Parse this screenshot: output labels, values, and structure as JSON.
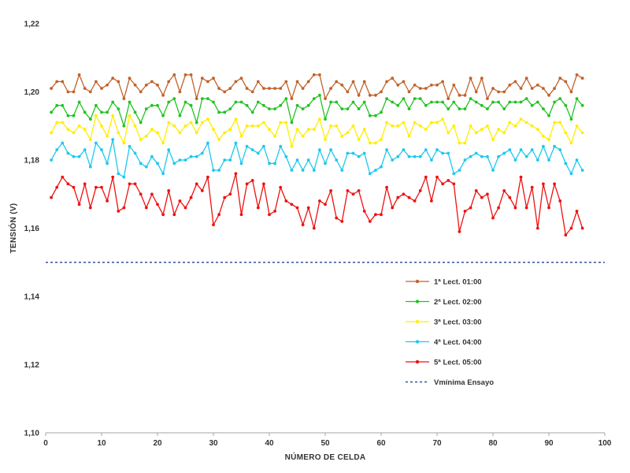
{
  "chart_data": {
    "type": "line",
    "title": "",
    "xlabel": "NÚMERO DE CELDA",
    "ylabel": "TENSIÓN (V)",
    "xlim": [
      0,
      100
    ],
    "ylim": [
      1.1,
      1.22
    ],
    "xticks": [
      0,
      10,
      20,
      30,
      40,
      50,
      60,
      70,
      80,
      90,
      100
    ],
    "xtick_labels": [
      "0",
      "10",
      "20",
      "30",
      "40",
      "50",
      "60",
      "70",
      "80",
      "90",
      "100"
    ],
    "yticks": [
      1.1,
      1.12,
      1.14,
      1.16,
      1.18,
      1.2,
      1.22
    ],
    "ytick_labels": [
      "1,10",
      "1,12",
      "1,14",
      "1,16",
      "1,18",
      "1,20",
      "1,22"
    ],
    "grid": "none",
    "legend_position": "right",
    "x": [
      1,
      2,
      3,
      4,
      5,
      6,
      7,
      8,
      9,
      10,
      11,
      12,
      13,
      14,
      15,
      16,
      17,
      18,
      19,
      20,
      21,
      22,
      23,
      24,
      25,
      26,
      27,
      28,
      29,
      30,
      31,
      32,
      33,
      34,
      35,
      36,
      37,
      38,
      39,
      40,
      41,
      42,
      43,
      44,
      45,
      46,
      47,
      48,
      49,
      50,
      51,
      52,
      53,
      54,
      55,
      56,
      57,
      58,
      59,
      60,
      61,
      62,
      63,
      64,
      65,
      66,
      67,
      68,
      69,
      70,
      71,
      72,
      73,
      74,
      75,
      76,
      77,
      78,
      79,
      80,
      81,
      82,
      83,
      84,
      85,
      86,
      87,
      88,
      89,
      90,
      91,
      92,
      93,
      94,
      95,
      96
    ],
    "series": [
      {
        "name": "1ª Lect. 01:00",
        "color": "#c0632b",
        "marker": "circle",
        "values": [
          1.201,
          1.203,
          1.203,
          1.2,
          1.2,
          1.205,
          1.201,
          1.2,
          1.203,
          1.201,
          1.202,
          1.204,
          1.203,
          1.198,
          1.204,
          1.202,
          1.2,
          1.202,
          1.203,
          1.202,
          1.199,
          1.203,
          1.205,
          1.2,
          1.205,
          1.205,
          1.198,
          1.204,
          1.203,
          1.204,
          1.201,
          1.2,
          1.201,
          1.203,
          1.204,
          1.201,
          1.2,
          1.203,
          1.201,
          1.201,
          1.201,
          1.201,
          1.203,
          1.198,
          1.203,
          1.201,
          1.203,
          1.205,
          1.205,
          1.198,
          1.201,
          1.203,
          1.202,
          1.2,
          1.203,
          1.199,
          1.203,
          1.199,
          1.199,
          1.2,
          1.203,
          1.204,
          1.202,
          1.203,
          1.2,
          1.202,
          1.201,
          1.201,
          1.202,
          1.202,
          1.203,
          1.198,
          1.202,
          1.199,
          1.199,
          1.204,
          1.2,
          1.204,
          1.198,
          1.201,
          1.2,
          1.2,
          1.202,
          1.203,
          1.201,
          1.204,
          1.201,
          1.202,
          1.201,
          1.199,
          1.201,
          1.204,
          1.203,
          1.2,
          1.205,
          1.204
        ]
      },
      {
        "name": "2ª Lect. 02:00",
        "color": "#22c322",
        "marker": "circle",
        "values": [
          1.194,
          1.196,
          1.196,
          1.193,
          1.193,
          1.197,
          1.194,
          1.192,
          1.196,
          1.194,
          1.194,
          1.197,
          1.195,
          1.19,
          1.197,
          1.194,
          1.191,
          1.195,
          1.196,
          1.196,
          1.193,
          1.197,
          1.198,
          1.193,
          1.197,
          1.196,
          1.191,
          1.198,
          1.198,
          1.197,
          1.194,
          1.194,
          1.195,
          1.197,
          1.197,
          1.196,
          1.194,
          1.197,
          1.196,
          1.195,
          1.195,
          1.196,
          1.198,
          1.191,
          1.196,
          1.195,
          1.196,
          1.198,
          1.199,
          1.192,
          1.197,
          1.197,
          1.195,
          1.195,
          1.197,
          1.195,
          1.197,
          1.193,
          1.193,
          1.194,
          1.198,
          1.197,
          1.196,
          1.198,
          1.195,
          1.198,
          1.198,
          1.196,
          1.197,
          1.197,
          1.197,
          1.195,
          1.197,
          1.195,
          1.195,
          1.198,
          1.197,
          1.196,
          1.195,
          1.197,
          1.197,
          1.195,
          1.197,
          1.197,
          1.197,
          1.198,
          1.196,
          1.197,
          1.195,
          1.193,
          1.197,
          1.198,
          1.196,
          1.192,
          1.198,
          1.196
        ]
      },
      {
        "name": "3ª Lect. 03:00",
        "color": "#ffee00",
        "marker": "circle",
        "values": [
          1.188,
          1.191,
          1.191,
          1.189,
          1.188,
          1.19,
          1.189,
          1.186,
          1.193,
          1.19,
          1.187,
          1.193,
          1.188,
          1.185,
          1.193,
          1.19,
          1.186,
          1.187,
          1.189,
          1.188,
          1.185,
          1.191,
          1.19,
          1.188,
          1.19,
          1.191,
          1.188,
          1.191,
          1.192,
          1.189,
          1.186,
          1.188,
          1.189,
          1.192,
          1.187,
          1.19,
          1.19,
          1.19,
          1.191,
          1.189,
          1.187,
          1.191,
          1.191,
          1.184,
          1.189,
          1.187,
          1.189,
          1.189,
          1.192,
          1.186,
          1.19,
          1.19,
          1.187,
          1.188,
          1.19,
          1.186,
          1.189,
          1.185,
          1.185,
          1.186,
          1.191,
          1.19,
          1.19,
          1.191,
          1.187,
          1.191,
          1.19,
          1.189,
          1.191,
          1.191,
          1.192,
          1.188,
          1.19,
          1.185,
          1.185,
          1.19,
          1.188,
          1.189,
          1.19,
          1.186,
          1.189,
          1.188,
          1.191,
          1.19,
          1.192,
          1.191,
          1.19,
          1.189,
          1.187,
          1.186,
          1.191,
          1.191,
          1.188,
          1.185,
          1.19,
          1.188
        ]
      },
      {
        "name": "4ª Lect. 04:00",
        "color": "#1ec8ee",
        "marker": "circle",
        "values": [
          1.18,
          1.183,
          1.185,
          1.182,
          1.181,
          1.181,
          1.183,
          1.178,
          1.185,
          1.183,
          1.179,
          1.186,
          1.176,
          1.175,
          1.184,
          1.182,
          1.179,
          1.178,
          1.181,
          1.179,
          1.176,
          1.183,
          1.179,
          1.18,
          1.18,
          1.181,
          1.181,
          1.182,
          1.185,
          1.177,
          1.177,
          1.18,
          1.18,
          1.185,
          1.179,
          1.184,
          1.183,
          1.182,
          1.184,
          1.179,
          1.179,
          1.184,
          1.181,
          1.177,
          1.18,
          1.177,
          1.18,
          1.177,
          1.183,
          1.179,
          1.183,
          1.18,
          1.177,
          1.182,
          1.182,
          1.181,
          1.182,
          1.176,
          1.177,
          1.178,
          1.183,
          1.18,
          1.181,
          1.183,
          1.181,
          1.181,
          1.181,
          1.183,
          1.18,
          1.183,
          1.182,
          1.182,
          1.176,
          1.177,
          1.18,
          1.181,
          1.182,
          1.181,
          1.181,
          1.177,
          1.181,
          1.182,
          1.183,
          1.18,
          1.183,
          1.181,
          1.183,
          1.18,
          1.184,
          1.18,
          1.184,
          1.183,
          1.179,
          1.176,
          1.18,
          1.177
        ]
      },
      {
        "name": "5ª Lect. 05:00",
        "color": "#ee1111",
        "marker": "circle",
        "values": [
          1.169,
          1.172,
          1.175,
          1.173,
          1.172,
          1.167,
          1.173,
          1.166,
          1.172,
          1.172,
          1.168,
          1.175,
          1.165,
          1.166,
          1.173,
          1.173,
          1.17,
          1.166,
          1.17,
          1.167,
          1.164,
          1.171,
          1.164,
          1.168,
          1.166,
          1.169,
          1.173,
          1.171,
          1.175,
          1.161,
          1.164,
          1.169,
          1.17,
          1.176,
          1.164,
          1.173,
          1.174,
          1.166,
          1.173,
          1.164,
          1.165,
          1.172,
          1.168,
          1.167,
          1.166,
          1.161,
          1.166,
          1.16,
          1.168,
          1.167,
          1.171,
          1.163,
          1.162,
          1.171,
          1.17,
          1.171,
          1.165,
          1.162,
          1.164,
          1.164,
          1.172,
          1.166,
          1.169,
          1.17,
          1.169,
          1.168,
          1.171,
          1.175,
          1.168,
          1.175,
          1.173,
          1.174,
          1.173,
          1.159,
          1.165,
          1.166,
          1.171,
          1.169,
          1.17,
          1.163,
          1.166,
          1.171,
          1.169,
          1.166,
          1.175,
          1.166,
          1.172,
          1.16,
          1.173,
          1.166,
          1.173,
          1.168,
          1.158,
          1.16,
          1.165,
          1.16
        ]
      },
      {
        "name": "Vmínima Ensayo",
        "color": "#2e5597",
        "marker": "none",
        "dashed": true,
        "constant": 1.15
      }
    ]
  }
}
